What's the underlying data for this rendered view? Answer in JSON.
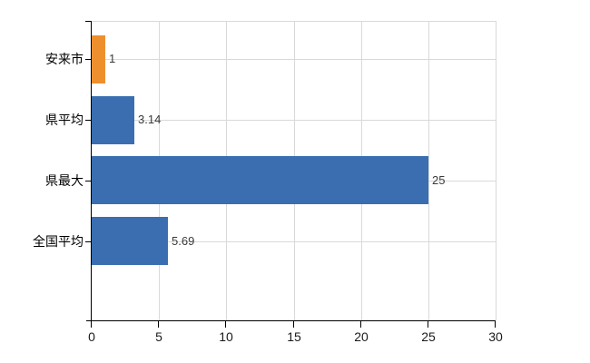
{
  "chart_data": {
    "type": "bar",
    "orientation": "horizontal",
    "title": "",
    "categories": [
      "安来市",
      "県平均",
      "県最大",
      "全国平均"
    ],
    "values": [
      1,
      3.14,
      25,
      5.69
    ],
    "value_labels": [
      "1",
      "3.14",
      "25",
      "5.69"
    ],
    "series": [
      {
        "name": "値",
        "values": [
          1,
          3.14,
          25,
          5.69
        ]
      }
    ],
    "bar_colors": [
      "#EE8F2E",
      "#3A6EB0",
      "#3A6EB0",
      "#3A6EB0"
    ],
    "highlight_category": "安来市",
    "highlight_color": "#EE8F2E",
    "default_bar_color": "#3A6EB0",
    "xlabel": "",
    "ylabel": "",
    "xlim": [
      0,
      30
    ],
    "xticks": [
      0,
      5,
      10,
      15,
      20,
      25,
      30
    ],
    "xtick_labels": [
      "0",
      "5",
      "10",
      "15",
      "20",
      "25",
      "30"
    ],
    "grid": true,
    "gridline_color": "#d9d9d9",
    "axis_color": "#000000",
    "text_color": "#000000",
    "value_label_color": "#3a3a3a",
    "background_color": "#ffffff",
    "legend": "none"
  }
}
